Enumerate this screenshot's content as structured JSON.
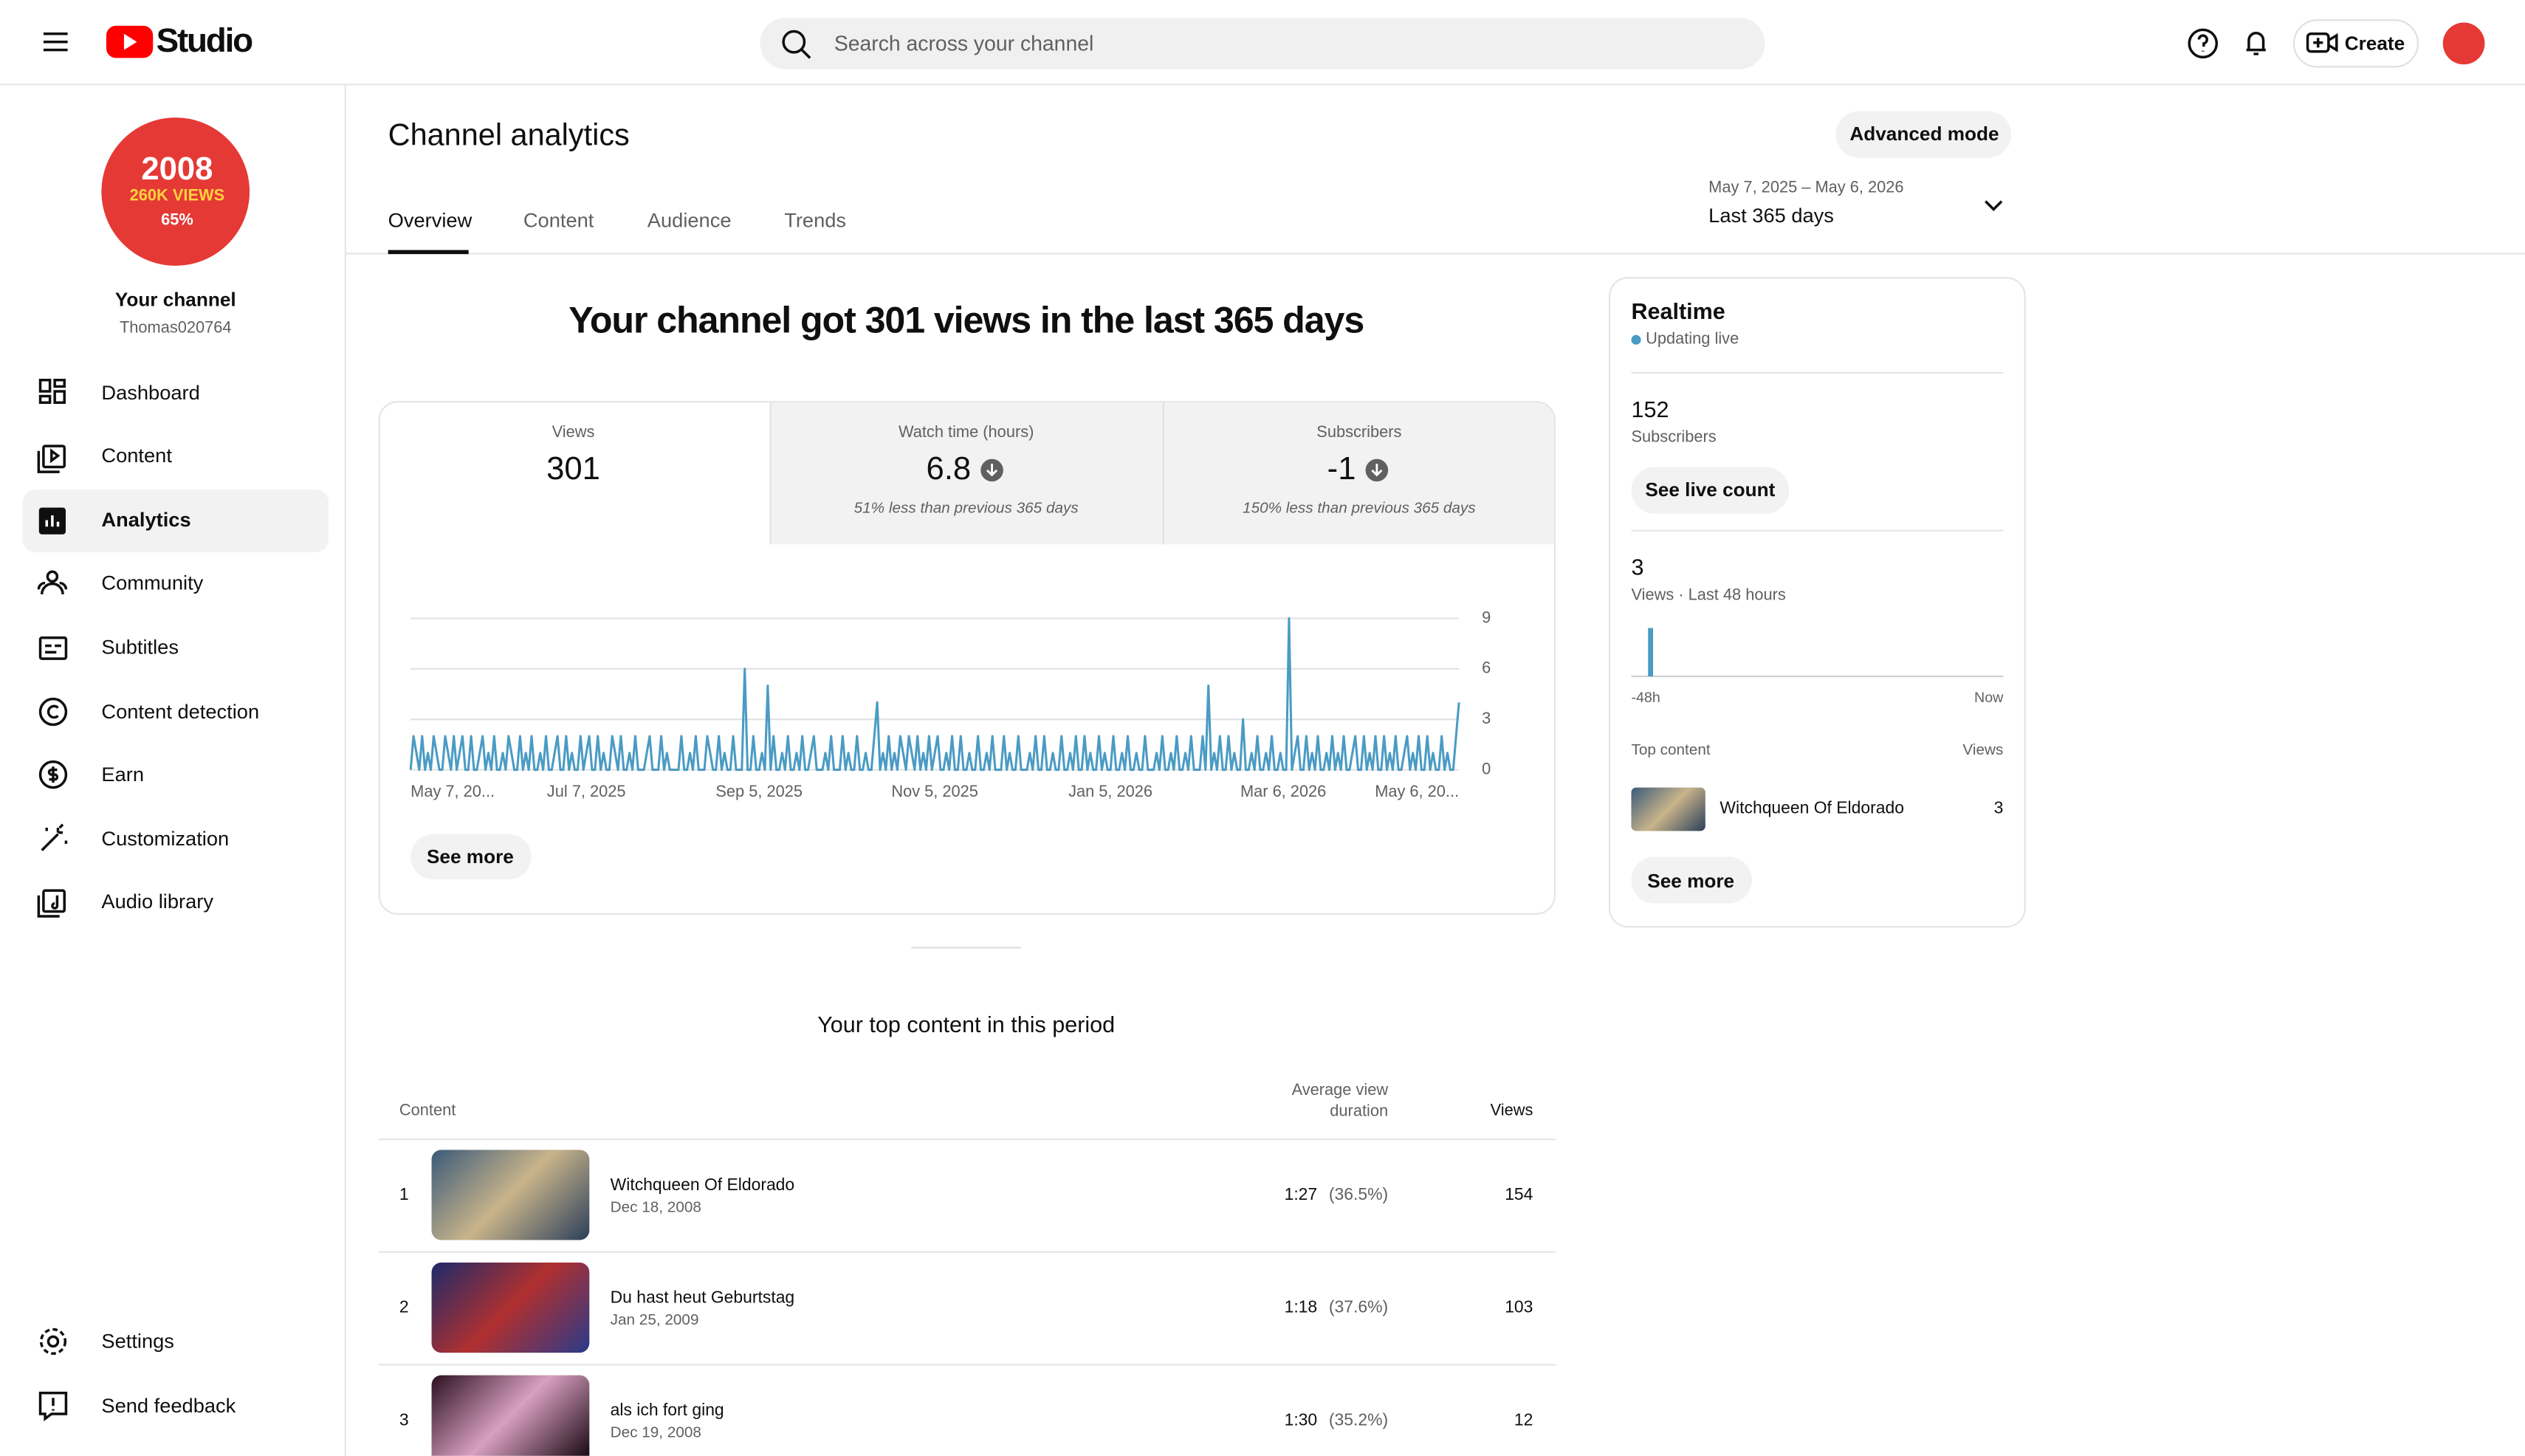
{
  "header": {
    "logo": "Studio",
    "search_placeholder": "Search across your channel",
    "create": "Create"
  },
  "sidebar": {
    "avatar_lines": [
      "2008",
      "260K VIEWS",
      "65%"
    ],
    "channel_title": "Your channel",
    "channel_handle": "Thomas020764",
    "nav": [
      "Dashboard",
      "Content",
      "Analytics",
      "Community",
      "Subtitles",
      "Content detection",
      "Earn",
      "Customization",
      "Audio library"
    ],
    "footer": [
      "Settings",
      "Send feedback"
    ]
  },
  "page": {
    "title": "Channel analytics",
    "advanced_mode": "Advanced mode",
    "tabs": [
      "Overview",
      "Content",
      "Audience",
      "Trends"
    ],
    "date_range": "May 7, 2025 – May 6, 2026",
    "period": "Last 365 days"
  },
  "overview": {
    "headline": "Your channel got 301 views in the last 365 days",
    "metrics": [
      {
        "label": "Views",
        "value": 301
      },
      {
        "label": "Watch time (hours)",
        "value": 6.8,
        "note": "51% less than previous 365 days"
      },
      {
        "label": "Subscribers",
        "value": -1,
        "note": "150% less than previous 365 days"
      }
    ],
    "see_more": "See more"
  },
  "chart_data": {
    "type": "line",
    "color": "#4a9bc4",
    "ylim": [
      0,
      9
    ],
    "yticks": [
      0,
      3,
      6,
      9
    ],
    "grid": true,
    "categories": [
      "May 7, 20...",
      null,
      null,
      null,
      null,
      null,
      null,
      null,
      null,
      null,
      null,
      null,
      null,
      null,
      null,
      null,
      null,
      null,
      null,
      null,
      null,
      null,
      null,
      null,
      null,
      null,
      null,
      null,
      null,
      null,
      null,
      null,
      null,
      null,
      null,
      null,
      null,
      null,
      null,
      null,
      null,
      null,
      null,
      null,
      null,
      null,
      null,
      null,
      null,
      null,
      null,
      null,
      null,
      null,
      null,
      null,
      null,
      null,
      null,
      null,
      null,
      "Jul 7, 2025",
      null,
      null,
      null,
      null,
      null,
      null,
      null,
      null,
      null,
      null,
      null,
      null,
      null,
      null,
      null,
      null,
      null,
      null,
      null,
      null,
      null,
      null,
      null,
      null,
      null,
      null,
      null,
      null,
      null,
      null,
      null,
      null,
      null,
      null,
      null,
      null,
      null,
      null,
      null,
      null,
      null,
      null,
      null,
      null,
      null,
      null,
      null,
      null,
      null,
      null,
      null,
      null,
      null,
      null,
      null,
      null,
      null,
      null,
      null,
      "Sep 5, 2025",
      null,
      null,
      null,
      null,
      null,
      null,
      null,
      null,
      null,
      null,
      null,
      null,
      null,
      null,
      null,
      null,
      null,
      null,
      null,
      null,
      null,
      null,
      null,
      null,
      null,
      null,
      null,
      null,
      null,
      null,
      null,
      null,
      null,
      null,
      null,
      null,
      null,
      null,
      null,
      null,
      null,
      null,
      null,
      null,
      null,
      null,
      null,
      null,
      null,
      null,
      null,
      null,
      null,
      null,
      null,
      null,
      null,
      null,
      null,
      null,
      "Nov 5, 2025",
      null,
      null,
      null,
      null,
      null,
      null,
      null,
      null,
      null,
      null,
      null,
      null,
      null,
      null,
      null,
      null,
      null,
      null,
      null,
      null,
      null,
      null,
      null,
      null,
      null,
      null,
      null,
      null,
      null,
      null,
      null,
      null,
      null,
      null,
      null,
      null,
      null,
      null,
      null,
      null,
      null,
      null,
      null,
      null,
      null,
      null,
      null,
      null,
      null,
      null,
      null,
      null,
      null,
      null,
      null,
      null,
      null,
      null,
      null,
      null,
      "Jan 5, 2026",
      null,
      null,
      null,
      null,
      null,
      null,
      null,
      null,
      null,
      null,
      null,
      null,
      null,
      null,
      null,
      null,
      null,
      null,
      null,
      null,
      null,
      null,
      null,
      null,
      null,
      null,
      null,
      null,
      null,
      null,
      null,
      null,
      null,
      null,
      null,
      null,
      null,
      null,
      null,
      null,
      null,
      null,
      null,
      null,
      null,
      null,
      null,
      null,
      null,
      null,
      null,
      null,
      null,
      null,
      null,
      null,
      null,
      null,
      null,
      "Mar 6, 2026",
      null,
      null,
      null,
      null,
      null,
      null,
      null,
      null,
      null,
      null,
      null,
      null,
      null,
      null,
      null,
      null,
      null,
      null,
      null,
      null,
      null,
      null,
      null,
      null,
      null,
      null,
      null,
      null,
      null,
      null,
      null,
      null,
      null,
      null,
      null,
      null,
      null,
      null,
      null,
      null,
      null,
      null,
      null,
      null,
      null,
      null,
      null,
      null,
      null,
      null,
      null,
      null,
      null,
      null,
      null,
      null,
      null,
      null,
      null,
      null,
      "May 6, 20..."
    ],
    "values": [
      0,
      2,
      1,
      0,
      2,
      0,
      1,
      0,
      2,
      1,
      0,
      0,
      2,
      1,
      0,
      2,
      0,
      1,
      2,
      0,
      0,
      2,
      0,
      0,
      1,
      2,
      0,
      1,
      0,
      2,
      0,
      0,
      1,
      0,
      2,
      1,
      0,
      0,
      2,
      0,
      1,
      0,
      2,
      0,
      0,
      1,
      0,
      2,
      0,
      0,
      1,
      2,
      0,
      0,
      2,
      0,
      1,
      0,
      0,
      2,
      0,
      1,
      2,
      0,
      0,
      2,
      0,
      1,
      0,
      0,
      2,
      1,
      0,
      2,
      0,
      0,
      1,
      0,
      2,
      0,
      0,
      0,
      1,
      2,
      0,
      0,
      0,
      2,
      0,
      1,
      0,
      0,
      0,
      0,
      2,
      0,
      0,
      1,
      0,
      2,
      0,
      0,
      0,
      2,
      1,
      0,
      0,
      2,
      0,
      1,
      0,
      0,
      2,
      0,
      0,
      0,
      6,
      0,
      0,
      2,
      0,
      0,
      1,
      0,
      5,
      0,
      2,
      0,
      0,
      1,
      0,
      2,
      0,
      0,
      1,
      0,
      2,
      0,
      0,
      1,
      2,
      0,
      0,
      0,
      1,
      0,
      2,
      0,
      0,
      0,
      2,
      0,
      1,
      0,
      0,
      2,
      0,
      0,
      1,
      0,
      0,
      2,
      4,
      0,
      1,
      0,
      2,
      0,
      1,
      0,
      2,
      1,
      0,
      2,
      1,
      0,
      2,
      0,
      1,
      0,
      2,
      0,
      1,
      2,
      0,
      0,
      1,
      0,
      2,
      0,
      0,
      2,
      0,
      0,
      1,
      0,
      0,
      2,
      0,
      0,
      1,
      0,
      2,
      0,
      0,
      0,
      2,
      0,
      1,
      0,
      0,
      2,
      0,
      0,
      0,
      1,
      0,
      2,
      0,
      0,
      2,
      0,
      0,
      1,
      0,
      0,
      2,
      0,
      0,
      1,
      0,
      2,
      0,
      0,
      2,
      0,
      1,
      0,
      0,
      2,
      0,
      1,
      0,
      0,
      2,
      0,
      0,
      1,
      0,
      2,
      0,
      0,
      1,
      0,
      0,
      2,
      0,
      0,
      0,
      1,
      0,
      2,
      0,
      0,
      1,
      0,
      2,
      0,
      0,
      1,
      0,
      2,
      0,
      0,
      0,
      2,
      0,
      5,
      0,
      1,
      0,
      2,
      0,
      0,
      2,
      0,
      1,
      0,
      0,
      3,
      0,
      0,
      1,
      0,
      2,
      0,
      0,
      1,
      0,
      2,
      0,
      0,
      1,
      0,
      0,
      9,
      0,
      1,
      2,
      0,
      0,
      2,
      0,
      1,
      0,
      2,
      0,
      0,
      1,
      0,
      2,
      0,
      1,
      0,
      2,
      0,
      0,
      1,
      2,
      0,
      0,
      2,
      0,
      1,
      0,
      2,
      0,
      0,
      2,
      0,
      1,
      0,
      2,
      0,
      0,
      1,
      2,
      0,
      1,
      0,
      2,
      0,
      0,
      2,
      0,
      1,
      0,
      0,
      2,
      0,
      1,
      0,
      0,
      2,
      4
    ]
  },
  "top_content": {
    "title": "Your top content in this period",
    "columns": [
      "Content",
      "Average view duration",
      "Views"
    ],
    "rows": [
      {
        "rank": 1,
        "title": "Witchqueen Of Eldorado",
        "date": "Dec 18, 2008",
        "duration": "1:27",
        "percent": "(36.5%)",
        "views": 154
      },
      {
        "rank": 2,
        "title": "Du hast heut Geburtstag",
        "date": "Jan 25, 2009",
        "duration": "1:18",
        "percent": "(37.6%)",
        "views": 103
      },
      {
        "rank": 3,
        "title": "als ich fort ging",
        "date": "Dec 19, 2008",
        "duration": "1:30",
        "percent": "(35.2%)",
        "views": 12
      }
    ]
  },
  "realtime": {
    "title": "Realtime",
    "status": "Updating live",
    "subscribers": 152,
    "subscribers_label": "Subscribers",
    "see_live_count": "See live count",
    "views": 3,
    "views_label": "Views · Last 48 hours",
    "chart": {
      "values": [
        0,
        0,
        3,
        0,
        0,
        0,
        0,
        0,
        0,
        0,
        0,
        0,
        0,
        0,
        0,
        0,
        0,
        0,
        0,
        0,
        0,
        0,
        0,
        0,
        0,
        0,
        0,
        0,
        0,
        0,
        0,
        0,
        0,
        0,
        0,
        0,
        0,
        0,
        0,
        0,
        0,
        0,
        0,
        0,
        0,
        0,
        0,
        0
      ],
      "color": "#4a9bc4",
      "start_label": "-48h",
      "end_label": "Now"
    },
    "top_content_label": "Top content",
    "views_column": "Views",
    "top": {
      "title": "Witchqueen Of Eldorado",
      "views": 3
    },
    "see_more": "See more"
  }
}
